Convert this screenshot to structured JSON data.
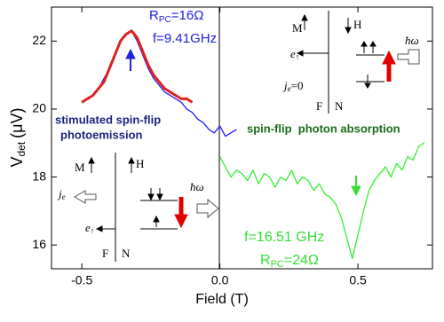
{
  "chart_data": {
    "type": "line",
    "x_label": "Field (T)",
    "y_label": {
      "main": "V",
      "sub": "det",
      "unit": "(μV)"
    },
    "xlim": [
      -0.61,
      0.77
    ],
    "ylim": [
      15.3,
      23
    ],
    "xticks": [
      -0.5,
      {
        "value": 0,
        "label": "0.0"
      },
      0.5
    ],
    "yticks": [
      16,
      18,
      20,
      22
    ],
    "series": [
      {
        "color": "#1f1fff",
        "x": [
          -0.5,
          -0.48,
          -0.46,
          -0.44,
          -0.42,
          -0.4,
          -0.38,
          -0.36,
          -0.34,
          -0.32,
          -0.3,
          -0.28,
          -0.26,
          -0.24,
          -0.22,
          -0.2,
          -0.18,
          -0.16,
          -0.14,
          -0.12,
          -0.1,
          -0.08,
          -0.06,
          -0.04,
          -0.02,
          0,
          0.02,
          0.04,
          0.06
        ],
        "values": [
          20.2,
          20.3,
          20.4,
          20.6,
          20.9,
          21.2,
          21.6,
          22.0,
          22.2,
          22.3,
          22.0,
          21.6,
          21.2,
          20.9,
          20.7,
          20.5,
          20.4,
          20.3,
          20.2,
          20.0,
          19.9,
          19.7,
          19.6,
          19.4,
          19.3,
          19.5,
          19.2,
          19.3,
          19.4
        ]
      },
      {
        "color": "#e02020",
        "x": [
          -0.5,
          -0.48,
          -0.46,
          -0.44,
          -0.42,
          -0.4,
          -0.38,
          -0.36,
          -0.34,
          -0.32,
          -0.3,
          -0.28,
          -0.26,
          -0.24,
          -0.22,
          -0.2,
          -0.18,
          -0.16,
          -0.14,
          -0.12,
          -0.1
        ],
        "values": [
          20.2,
          20.3,
          20.4,
          20.6,
          20.8,
          21.2,
          21.6,
          22.0,
          22.2,
          22.3,
          22.1,
          21.7,
          21.3,
          21.0,
          20.8,
          20.6,
          20.5,
          20.4,
          20.3,
          20.3,
          20.2
        ]
      },
      {
        "color": "#33ee33",
        "x": [
          0,
          0.02,
          0.04,
          0.06,
          0.08,
          0.1,
          0.12,
          0.14,
          0.16,
          0.18,
          0.2,
          0.22,
          0.24,
          0.26,
          0.28,
          0.3,
          0.32,
          0.34,
          0.36,
          0.38,
          0.4,
          0.42,
          0.44,
          0.46,
          0.48,
          0.5,
          0.52,
          0.54,
          0.56,
          0.58,
          0.6,
          0.62,
          0.64,
          0.66,
          0.68,
          0.7,
          0.72,
          0.74
        ],
        "values": [
          18.6,
          18.3,
          18.0,
          18.2,
          18.1,
          17.9,
          18.2,
          17.8,
          18.1,
          18.0,
          17.7,
          18.0,
          17.9,
          18.2,
          17.8,
          18.0,
          17.9,
          17.6,
          17.8,
          17.5,
          17.4,
          17.2,
          16.8,
          16.2,
          15.6,
          16.3,
          17.0,
          17.6,
          17.9,
          18.1,
          18.3,
          18.0,
          18.4,
          18.2,
          18.6,
          18.5,
          18.9,
          19.0
        ]
      }
    ],
    "annotations": {
      "rpc1": {
        "main": "R",
        "sub": "PC",
        "rest": "=16Ω"
      },
      "f1": "f=9.41GHz",
      "stimulated": [
        "stimulated spin-flip",
        "photoemission"
      ],
      "absorption": "spin-flip  photon absorption",
      "f2": "f=16.51 GHz",
      "rpc2": {
        "main": "R",
        "sub": "PC",
        "rest": "=24Ω"
      },
      "inset_top": {
        "M": "M",
        "H": "H",
        "e": "e",
        "e_sub": "↑",
        "hw": "ħω",
        "j": "j",
        "j_sub": "e",
        "j_rest": "=0",
        "F": "F",
        "N": "N"
      },
      "inset_bottom": {
        "M": "M",
        "H": "H",
        "j": "j",
        "j_sub": "e",
        "e": "e",
        "e_sub": "↑",
        "hw": "ħω",
        "F": "F",
        "N": "N"
      }
    }
  }
}
